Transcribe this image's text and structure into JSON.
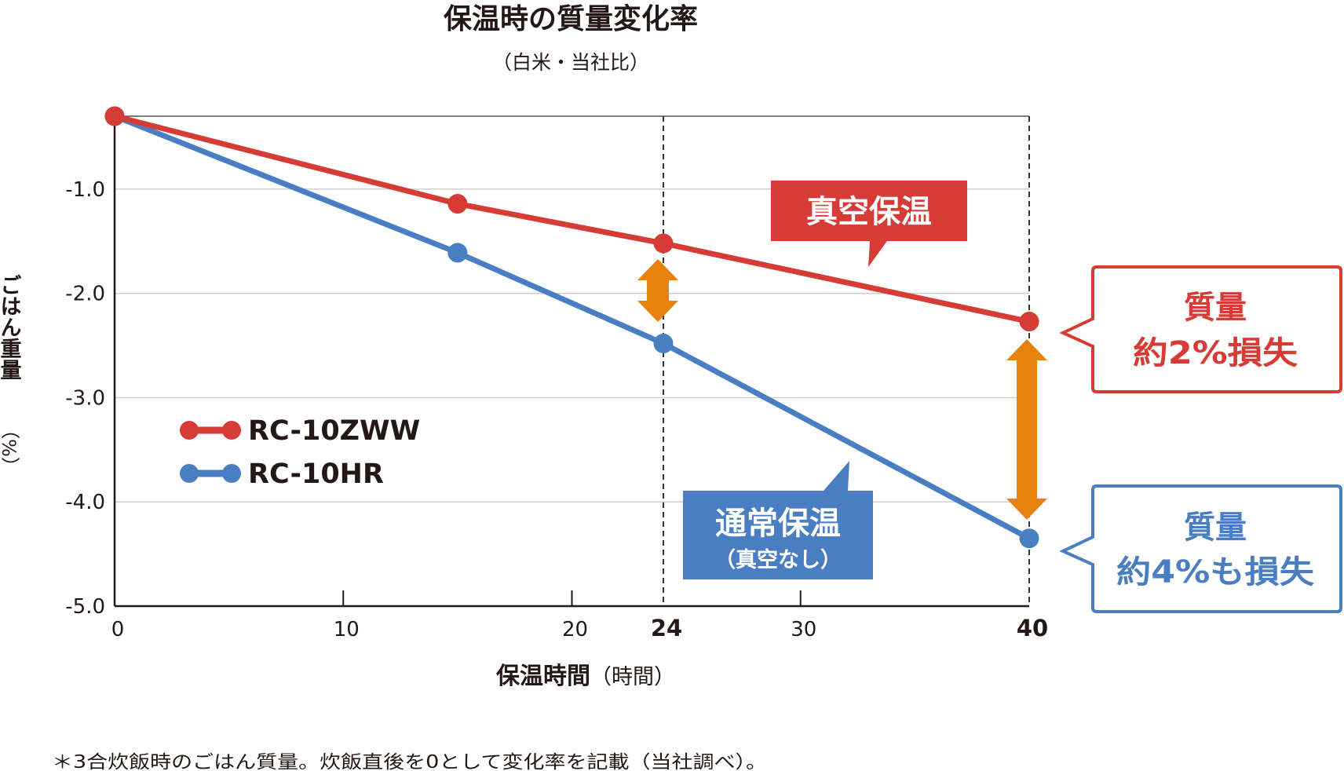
{
  "chart_data": {
    "type": "line",
    "title": "保温時の質量変化率",
    "subtitle": "（白米・当社比）",
    "xlabel_main": "保温時間",
    "xlabel_unit": "（時間）",
    "ylabel_main": "ごはん重量",
    "ylabel_unit": "（%）",
    "xlim": [
      0,
      40
    ],
    "ylim": [
      -5.0,
      -0.3
    ],
    "x_ticks": [
      0,
      10,
      20,
      24,
      30,
      40
    ],
    "x_tick_labels": [
      "0",
      "10",
      "20",
      "24",
      "30",
      "40"
    ],
    "x_ticks_bold": [
      24,
      40
    ],
    "y_ticks": [
      -1.0,
      -2.0,
      -3.0,
      -4.0,
      -5.0
    ],
    "y_tick_labels": [
      "-1.0",
      "-2.0",
      "-3.0",
      "-4.0",
      "-5.0"
    ],
    "grid": "horizontal",
    "reference_lines_x": [
      24,
      40
    ],
    "series": [
      {
        "name": "RC-10ZWW",
        "color": "#d63b36",
        "x": [
          0,
          15,
          24,
          40
        ],
        "y": [
          -0.3,
          -1.14,
          -1.52,
          -2.27
        ]
      },
      {
        "name": "RC-10HR",
        "color": "#4a7ec2",
        "x": [
          0,
          15,
          24,
          40
        ],
        "y": [
          -0.3,
          -1.61,
          -2.48,
          -4.35
        ]
      }
    ],
    "legend": {
      "placement": "center-left"
    },
    "annotations": {
      "vacuum_label": "真空保温",
      "normal_label": "通常保温",
      "normal_sub": "（真空なし）",
      "loss_red_line1": "質量",
      "loss_red_line2": "約2%損失",
      "loss_blue_line1": "質量",
      "loss_blue_line2": "約4%も損失"
    },
    "arrow_color": "#e8820e",
    "footnote": "＊3合炊飯時のごはん質量。炊飯直後を0として変化率を記載（当社調べ）。"
  }
}
